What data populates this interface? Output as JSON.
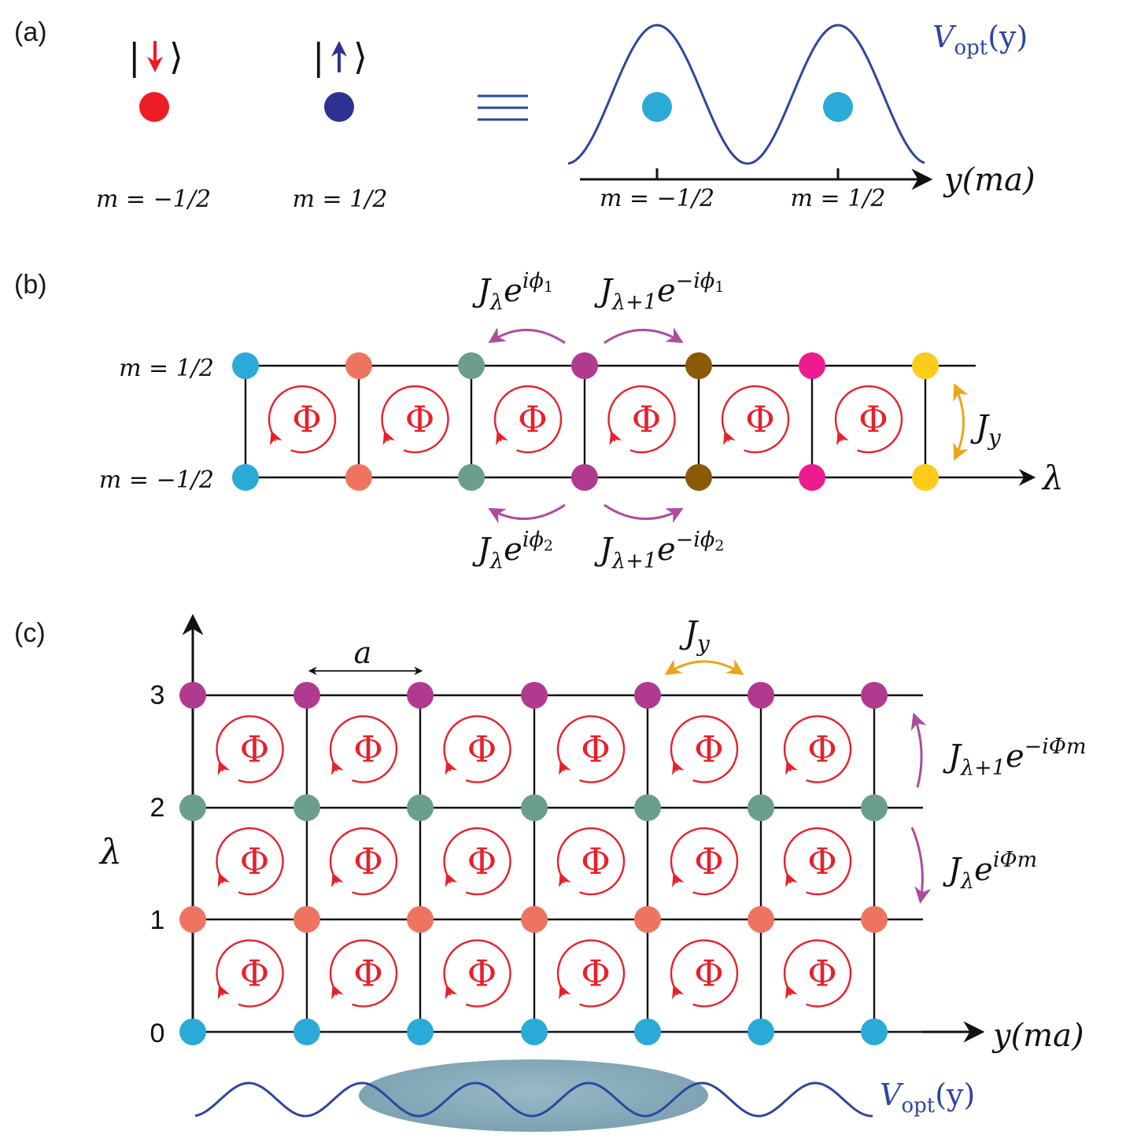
{
  "colors": {
    "down": "#ee1c25",
    "up": "#2e3192",
    "cyan": "#2aaad6",
    "salmon": "#ee7461",
    "green": "#6b9e8c",
    "purple": "#b03a90",
    "brown": "#8b5a07",
    "pink": "#ec1c8e",
    "yellow": "#fdcb1c",
    "flux": "#e8202a",
    "hop": "#ad4b9e",
    "jy": "#eba51a",
    "potential": "#2f46a0",
    "cloud": "#7ea7b8"
  },
  "panel_a": {
    "label": "(a)",
    "down_state": {
      "ket_open": "|",
      "ket_close": "⟩",
      "m_label": "m = −1/2"
    },
    "up_state": {
      "ket_open": "|",
      "ket_close": "⟩",
      "m_label": "m = 1/2"
    },
    "equiv_symbol": "≡",
    "potential_label": {
      "base": "V",
      "sub": "opt",
      "arg": "(y)"
    },
    "axis_label": "y(ma)",
    "tick_labels": [
      "m = −1/2",
      "m = 1/2"
    ]
  },
  "panel_b": {
    "label": "(b)",
    "row_labels": {
      "top": "m = 1/2",
      "bottom": "m = −1/2"
    },
    "axis_label": "λ",
    "hop_top_left": {
      "J": "J",
      "sub": "λ",
      "e": "e",
      "exp": "iϕ",
      "exp_sub": "1"
    },
    "hop_top_right": {
      "J": "J",
      "sub": "λ+1",
      "e": "e",
      "exp": "−iϕ",
      "exp_sub": "1"
    },
    "hop_bottom_left": {
      "J": "J",
      "sub": "λ",
      "e": "e",
      "exp": "iϕ",
      "exp_sub": "2"
    },
    "hop_bottom_right": {
      "J": "J",
      "sub": "λ+1",
      "e": "e",
      "exp": "−iϕ",
      "exp_sub": "2"
    },
    "jy_label": {
      "J": "J",
      "sub": "y"
    },
    "site_colors": [
      "cyan",
      "salmon",
      "green",
      "purple",
      "brown",
      "pink",
      "yellow"
    ],
    "flux_symbol": "Φ"
  },
  "panel_c": {
    "label": "(c)",
    "y_axis_label": "λ",
    "y_ticks": [
      "0",
      "1",
      "2",
      "3"
    ],
    "x_axis_label": "y(ma)",
    "spacing_label": "a",
    "jy_label": {
      "J": "J",
      "sub": "y"
    },
    "hop_up_label": {
      "J": "J",
      "sub": "λ+1",
      "e": "e",
      "exp": "−iΦm"
    },
    "hop_down_label": {
      "J": "J",
      "sub": "λ",
      "e": "e",
      "exp": "iΦm"
    },
    "row_colors": [
      "cyan",
      "salmon",
      "green",
      "purple"
    ],
    "flux_symbol": "Φ",
    "potential_label": {
      "base": "V",
      "sub": "opt",
      "arg": "(y)"
    }
  }
}
